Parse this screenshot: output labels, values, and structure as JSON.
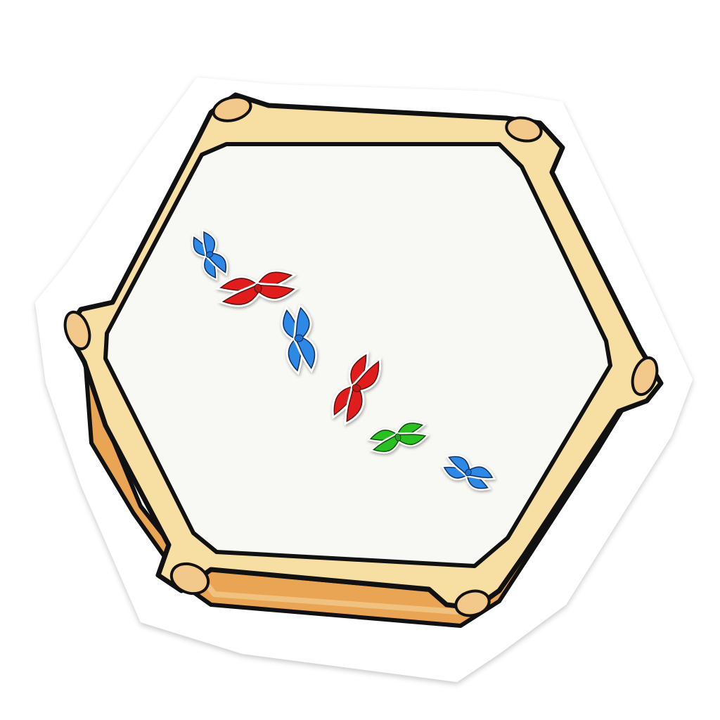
{
  "image": {
    "subject": "cell-in-metaphase-sticker",
    "background_color": "#ffffff",
    "sticker_border_color": "#ffffff",
    "frame": {
      "outer_fill": "#f7dfa3",
      "side_fill": "#e9a553",
      "outline": "#111111",
      "interior_fill": "#f8f8f4",
      "node_fill": "#f3c98b"
    },
    "chromosomes": [
      {
        "name": "chromosome-1",
        "color": "#2f88e6",
        "size": "small"
      },
      {
        "name": "chromosome-2",
        "color": "#e11f1f",
        "size": "large"
      },
      {
        "name": "chromosome-3",
        "color": "#2f88e6",
        "size": "large"
      },
      {
        "name": "chromosome-4",
        "color": "#e11f1f",
        "size": "large"
      },
      {
        "name": "chromosome-5",
        "color": "#29c022",
        "size": "medium"
      },
      {
        "name": "chromosome-6",
        "color": "#2f88e6",
        "size": "small"
      }
    ]
  }
}
